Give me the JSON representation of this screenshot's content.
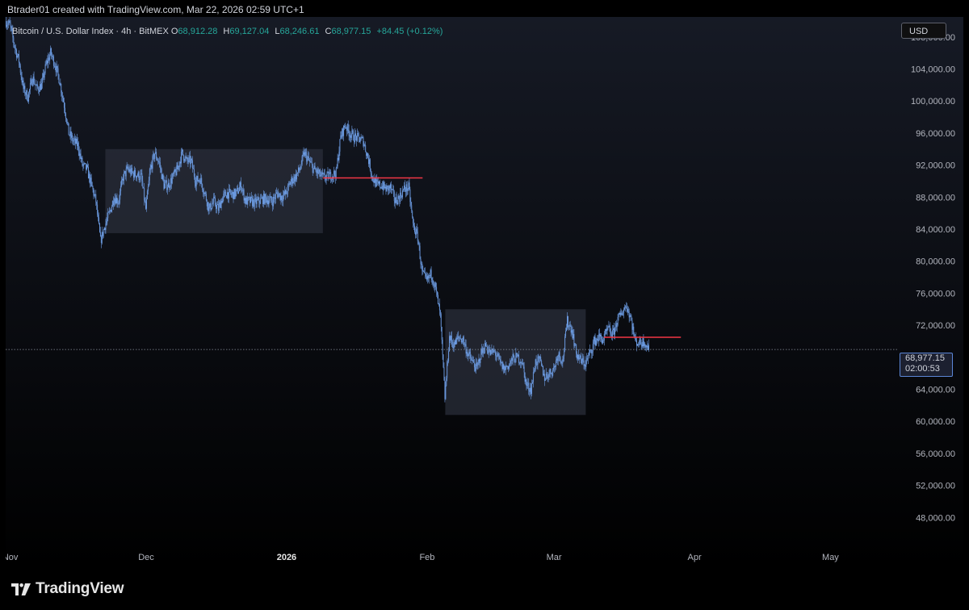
{
  "header": {
    "credit": "Btrader01 created with TradingView.com, Mar 22, 2026 02:59 UTC+1"
  },
  "legend": {
    "symbol": "Bitcoin / U.S. Dollar Index · 4h · BitMEX",
    "open_label": "O",
    "open": "68,912.28",
    "high_label": "H",
    "high": "69,127.04",
    "low_label": "L",
    "low": "68,246.61",
    "close_label": "C",
    "close": "68,977.15",
    "change": "+84.45 (+0.12%)"
  },
  "currency_button": "USD",
  "last_price": {
    "price": "68,977.15",
    "countdown": "02:00:53"
  },
  "footer": {
    "brand": "TradingView"
  },
  "colors": {
    "background_top": "#161a25",
    "background_bottom": "#000000",
    "candles": "#6e9ee6",
    "support_resistance_line": "#f23645",
    "range_box": "#2a2e39",
    "legend_values": "#26a69a"
  },
  "chart_data": {
    "type": "line",
    "title": "",
    "xlabel": "",
    "ylabel": "",
    "price_scale_labels": [
      "108,000.00",
      "104,000.00",
      "100,000.00",
      "96,000.00",
      "92,000.00",
      "88,000.00",
      "84,000.00",
      "80,000.00",
      "76,000.00",
      "72,000.00",
      "64,000.00",
      "60,000.00",
      "56,000.00",
      "52,000.00",
      "48,000.00"
    ],
    "y_ticks": [
      108000,
      104000,
      100000,
      96000,
      92000,
      88000,
      84000,
      80000,
      76000,
      72000,
      64000,
      60000,
      56000,
      52000,
      48000
    ],
    "time_labels": [
      {
        "date": "2025-11-01",
        "label": "Nov",
        "bold": false
      },
      {
        "date": "2025-12-01",
        "label": "Dec",
        "bold": false
      },
      {
        "date": "2026-01-01",
        "label": "2026",
        "bold": true
      },
      {
        "date": "2026-02-01",
        "label": "Feb",
        "bold": false
      },
      {
        "date": "2026-03-01",
        "label": "Mar",
        "bold": false
      },
      {
        "date": "2026-04-01",
        "label": "Apr",
        "bold": false
      },
      {
        "date": "2026-05-01",
        "label": "May",
        "bold": false
      }
    ],
    "xlim": [
      "2025-10-31",
      "2026-05-15"
    ],
    "ylim": [
      44000,
      110500
    ],
    "last_price": 68977.15,
    "grid": false,
    "series": [
      {
        "values": [
          [
            "2025-10-31",
            110000
          ],
          [
            "2025-11-01",
            109500
          ],
          [
            "2025-11-02",
            107000
          ],
          [
            "2025-11-03",
            105000
          ],
          [
            "2025-11-04",
            101500
          ],
          [
            "2025-11-05",
            100500
          ],
          [
            "2025-11-06",
            103000
          ],
          [
            "2025-11-07",
            101500
          ],
          [
            "2025-11-08",
            102000
          ],
          [
            "2025-11-09",
            104500
          ],
          [
            "2025-11-10",
            106000
          ],
          [
            "2025-11-11",
            104500
          ],
          [
            "2025-11-12",
            102500
          ],
          [
            "2025-11-13",
            99500
          ],
          [
            "2025-11-14",
            96000
          ],
          [
            "2025-11-15",
            95000
          ],
          [
            "2025-11-16",
            94500
          ],
          [
            "2025-11-17",
            92000
          ],
          [
            "2025-11-18",
            91500
          ],
          [
            "2025-11-19",
            89500
          ],
          [
            "2025-11-20",
            87500
          ],
          [
            "2025-11-21",
            82500
          ],
          [
            "2025-11-22",
            84500
          ],
          [
            "2025-11-23",
            86000
          ],
          [
            "2025-11-24",
            88000
          ],
          [
            "2025-11-25",
            87500
          ],
          [
            "2025-11-26",
            90500
          ],
          [
            "2025-11-27",
            91500
          ],
          [
            "2025-11-28",
            91000
          ],
          [
            "2025-11-29",
            90800
          ],
          [
            "2025-11-30",
            90500
          ],
          [
            "2025-12-01",
            86500
          ],
          [
            "2025-12-02",
            91500
          ],
          [
            "2025-12-03",
            93500
          ],
          [
            "2025-12-04",
            92200
          ],
          [
            "2025-12-05",
            89500
          ],
          [
            "2025-12-06",
            89500
          ],
          [
            "2025-12-07",
            90500
          ],
          [
            "2025-12-08",
            91500
          ],
          [
            "2025-12-09",
            93500
          ],
          [
            "2025-12-10",
            92500
          ],
          [
            "2025-12-11",
            92500
          ],
          [
            "2025-12-12",
            90000
          ],
          [
            "2025-12-13",
            90300
          ],
          [
            "2025-12-14",
            88500
          ],
          [
            "2025-12-15",
            86500
          ],
          [
            "2025-12-16",
            87500
          ],
          [
            "2025-12-17",
            86500
          ],
          [
            "2025-12-18",
            88000
          ],
          [
            "2025-12-19",
            88500
          ],
          [
            "2025-12-20",
            88300
          ],
          [
            "2025-12-21",
            88500
          ],
          [
            "2025-12-22",
            89500
          ],
          [
            "2025-12-23",
            87500
          ],
          [
            "2025-12-24",
            87500
          ],
          [
            "2025-12-25",
            87300
          ],
          [
            "2025-12-26",
            87500
          ],
          [
            "2025-12-27",
            87800
          ],
          [
            "2025-12-28",
            87700
          ],
          [
            "2025-12-29",
            87500
          ],
          [
            "2025-12-30",
            88500
          ],
          [
            "2025-12-31",
            88000
          ],
          [
            "2026-01-01",
            88500
          ],
          [
            "2026-01-02",
            90000
          ],
          [
            "2026-01-03",
            90500
          ],
          [
            "2026-01-04",
            91500
          ],
          [
            "2026-01-05",
            93500
          ],
          [
            "2026-01-06",
            92500
          ],
          [
            "2026-01-07",
            91500
          ],
          [
            "2026-01-08",
            91000
          ],
          [
            "2026-01-09",
            90500
          ],
          [
            "2026-01-10",
            90500
          ],
          [
            "2026-01-11",
            90800
          ],
          [
            "2026-01-12",
            91000
          ],
          [
            "2026-01-13",
            95500
          ],
          [
            "2026-01-14",
            97000
          ],
          [
            "2026-01-15",
            96000
          ],
          [
            "2026-01-16",
            95500
          ],
          [
            "2026-01-17",
            95300
          ],
          [
            "2026-01-18",
            95000
          ],
          [
            "2026-01-19",
            93000
          ],
          [
            "2026-01-20",
            90500
          ],
          [
            "2026-01-21",
            89500
          ],
          [
            "2026-01-22",
            89500
          ],
          [
            "2026-01-23",
            89000
          ],
          [
            "2026-01-24",
            89200
          ],
          [
            "2026-01-25",
            87500
          ],
          [
            "2026-01-26",
            88000
          ],
          [
            "2026-01-27",
            89000
          ],
          [
            "2026-01-28",
            89200
          ],
          [
            "2026-01-29",
            84500
          ],
          [
            "2026-01-30",
            83000
          ],
          [
            "2026-01-31",
            78500
          ],
          [
            "2026-02-01",
            77500
          ],
          [
            "2026-02-02",
            78500
          ],
          [
            "2026-02-03",
            76500
          ],
          [
            "2026-02-04",
            73000
          ],
          [
            "2026-02-05",
            63000
          ],
          [
            "2026-02-06",
            70500
          ],
          [
            "2026-02-07",
            69500
          ],
          [
            "2026-02-08",
            70500
          ],
          [
            "2026-02-09",
            70200
          ],
          [
            "2026-02-10",
            68500
          ],
          [
            "2026-02-11",
            67500
          ],
          [
            "2026-02-12",
            66500
          ],
          [
            "2026-02-13",
            68500
          ],
          [
            "2026-02-14",
            69500
          ],
          [
            "2026-02-15",
            68500
          ],
          [
            "2026-02-16",
            68700
          ],
          [
            "2026-02-17",
            67500
          ],
          [
            "2026-02-18",
            66500
          ],
          [
            "2026-02-19",
            67000
          ],
          [
            "2026-02-20",
            67800
          ],
          [
            "2026-02-21",
            68000
          ],
          [
            "2026-02-22",
            67500
          ],
          [
            "2026-02-23",
            64500
          ],
          [
            "2026-02-24",
            64000
          ],
          [
            "2026-02-25",
            67500
          ],
          [
            "2026-02-26",
            67500
          ],
          [
            "2026-02-27",
            65500
          ],
          [
            "2026-02-28",
            66000
          ],
          [
            "2026-03-01",
            66500
          ],
          [
            "2026-03-02",
            68500
          ],
          [
            "2026-03-03",
            67500
          ],
          [
            "2026-03-04",
            72500
          ],
          [
            "2026-03-05",
            71500
          ],
          [
            "2026-03-06",
            68500
          ],
          [
            "2026-03-07",
            67500
          ],
          [
            "2026-03-08",
            67200
          ],
          [
            "2026-03-09",
            68500
          ],
          [
            "2026-03-10",
            70000
          ],
          [
            "2026-03-11",
            70500
          ],
          [
            "2026-03-12",
            70200
          ],
          [
            "2026-03-13",
            71500
          ],
          [
            "2026-03-14",
            70800
          ],
          [
            "2026-03-15",
            72500
          ],
          [
            "2026-03-16",
            73500
          ],
          [
            "2026-03-17",
            74500
          ],
          [
            "2026-03-18",
            73000
          ],
          [
            "2026-03-19",
            70000
          ],
          [
            "2026-03-20",
            69800
          ],
          [
            "2026-03-21",
            70000
          ],
          [
            "2026-03-22",
            68977
          ]
        ]
      }
    ],
    "range_boxes": [
      {
        "start": "2025-11-22",
        "end": "2026-01-09",
        "top": 94000,
        "bottom": 83500
      },
      {
        "start": "2026-02-05",
        "end": "2026-03-08",
        "top": 74000,
        "bottom": 60800
      }
    ],
    "horizontal_lines": [
      {
        "start": "2026-01-09",
        "end": "2026-01-31",
        "value": 90400
      },
      {
        "start": "2026-03-12",
        "end": "2026-03-29",
        "value": 70500
      }
    ]
  }
}
